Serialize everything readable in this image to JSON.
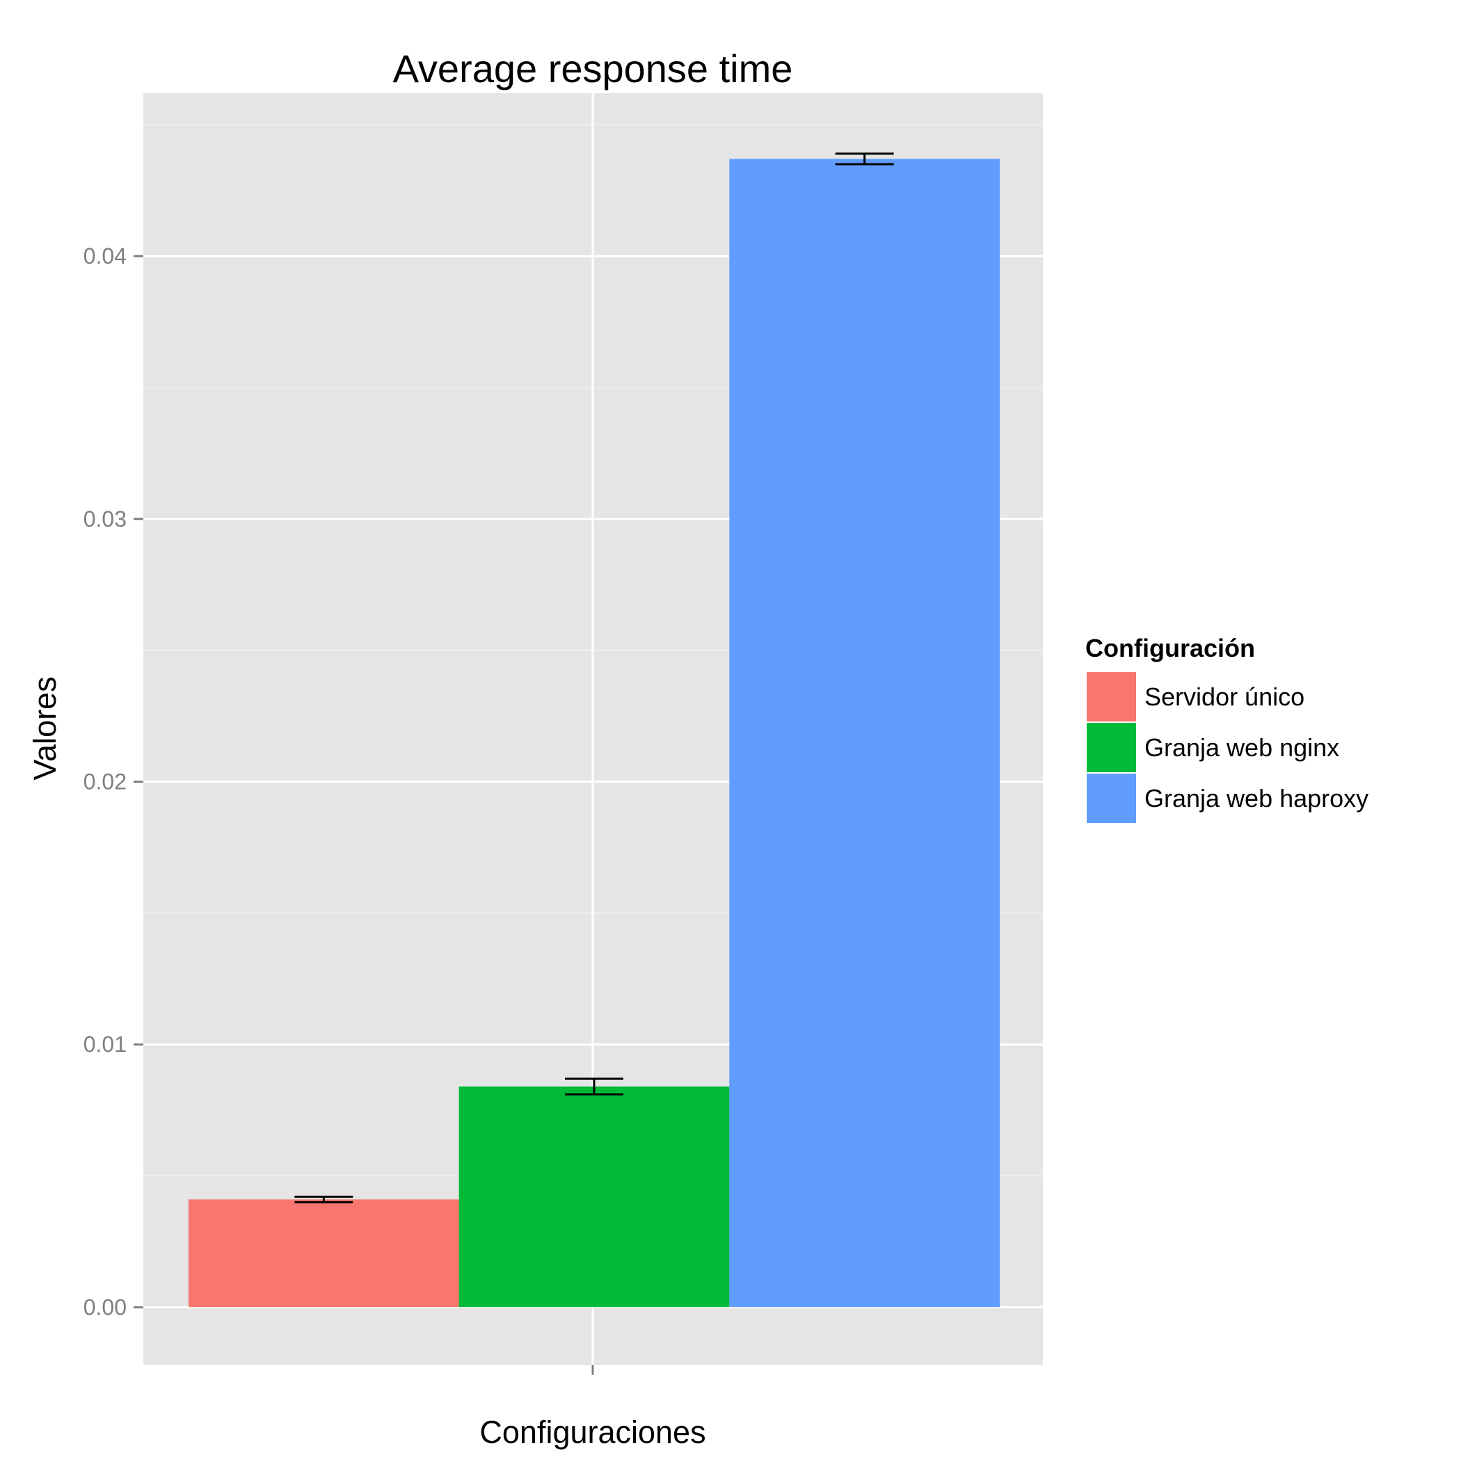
{
  "chart_data": {
    "type": "bar",
    "title": "Average response time",
    "xlabel": "Configuraciones",
    "ylabel": "Valores",
    "ylim": [
      -0.0022,
      0.0462
    ],
    "y_ticks": [
      {
        "value": 0.0,
        "label": "0.00"
      },
      {
        "value": 0.01,
        "label": "0.01"
      },
      {
        "value": 0.02,
        "label": "0.02"
      },
      {
        "value": 0.03,
        "label": "0.03"
      },
      {
        "value": 0.04,
        "label": "0.04"
      }
    ],
    "grid": true,
    "legend": {
      "title": "Configuración",
      "position": "right"
    },
    "series": [
      {
        "name": "Servidor único",
        "value": 0.0041,
        "error": [
          0.004,
          0.0042
        ],
        "color": "#F8766D"
      },
      {
        "name": "Granja web nginx",
        "value": 0.0084,
        "error": [
          0.0081,
          0.0087
        ],
        "color": "#00BA38"
      },
      {
        "name": "Granja web haproxy",
        "value": 0.0437,
        "error": [
          0.0435,
          0.0439
        ],
        "color": "#619CFF"
      }
    ]
  }
}
